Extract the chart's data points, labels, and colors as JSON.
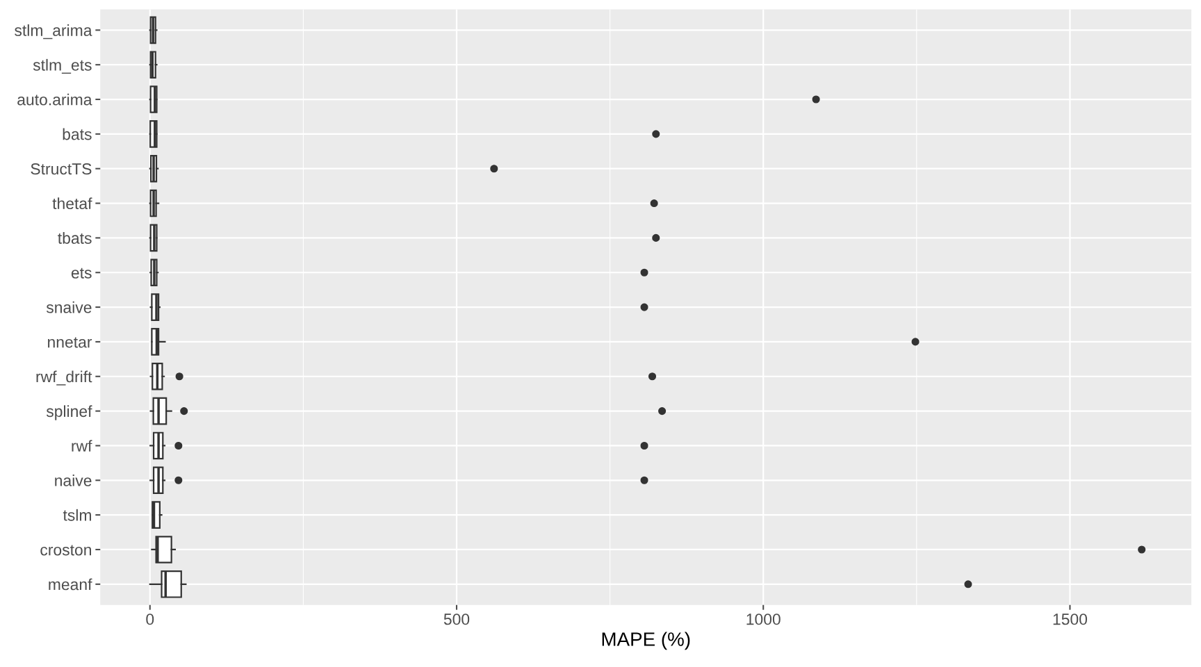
{
  "chart_data": {
    "type": "box",
    "orientation": "horizontal",
    "xlabel": "MAPE (%)",
    "categories": [
      "stlm_arima",
      "stlm_ets",
      "auto.arima",
      "bats",
      "StructTS",
      "thetaf",
      "tbats",
      "ets",
      "snaive",
      "nnetar",
      "rwf_drift",
      "splinef",
      "rwf",
      "naive",
      "tslm",
      "croston",
      "meanf"
    ],
    "boxes": [
      {
        "low": 0,
        "q1": 1,
        "median": 5,
        "q3": 9,
        "high": 11
      },
      {
        "low": 0,
        "q1": 1,
        "median": 4,
        "q3": 9,
        "high": 11
      },
      {
        "low": 0,
        "q1": 1,
        "median": 8,
        "q3": 11,
        "high": 11,
        "outliers": [
          1086
        ]
      },
      {
        "low": 0,
        "q1": 0.5,
        "median": 8,
        "q3": 11,
        "high": 11,
        "outliers": [
          825
        ]
      },
      {
        "low": 0,
        "q1": 1.5,
        "median": 6,
        "q3": 10.5,
        "high": 13,
        "outliers": [
          561
        ]
      },
      {
        "low": 0,
        "q1": 1,
        "median": 6,
        "q3": 10,
        "high": 14,
        "outliers": [
          822
        ]
      },
      {
        "low": 0,
        "q1": 1,
        "median": 7,
        "q3": 11,
        "high": 11,
        "outliers": [
          825
        ]
      },
      {
        "low": 0.5,
        "q1": 2,
        "median": 7,
        "q3": 11,
        "high": 13,
        "outliers": [
          806
        ]
      },
      {
        "low": 1,
        "q1": 3,
        "median": 10.5,
        "q3": 14,
        "high": 16,
        "outliers": [
          806
        ]
      },
      {
        "low": 3,
        "q1": 3,
        "median": 11,
        "q3": 14,
        "high": 24.5,
        "outliers": [
          1248
        ]
      },
      {
        "low": 1,
        "q1": 4,
        "median": 12,
        "q3": 20,
        "high": 23,
        "outliers": [
          48,
          819
        ]
      },
      {
        "low": 1,
        "q1": 5.5,
        "median": 14,
        "q3": 26.5,
        "high": 35,
        "outliers": [
          55.5,
          835
        ]
      },
      {
        "low": 0.5,
        "q1": 6,
        "median": 14,
        "q3": 21,
        "high": 24,
        "outliers": [
          46.5,
          806
        ]
      },
      {
        "low": 0.5,
        "q1": 6,
        "median": 14,
        "q3": 21,
        "high": 24,
        "outliers": [
          46.5,
          806
        ]
      },
      {
        "low": 4,
        "q1": 4,
        "median": 6.5,
        "q3": 16,
        "high": 19
      },
      {
        "low": 3,
        "q1": 10,
        "median": 12.5,
        "q3": 35,
        "high": 41,
        "outliers": [
          1617
        ]
      },
      {
        "low": 0,
        "q1": 19,
        "median": 25.5,
        "q3": 51,
        "high": 58.5,
        "outliers": [
          1334
        ]
      }
    ],
    "color": "#333333",
    "xlim": [
      -81,
      1698
    ],
    "xticks": [
      0,
      500,
      1000,
      1500
    ],
    "grid": true,
    "legend": false
  }
}
